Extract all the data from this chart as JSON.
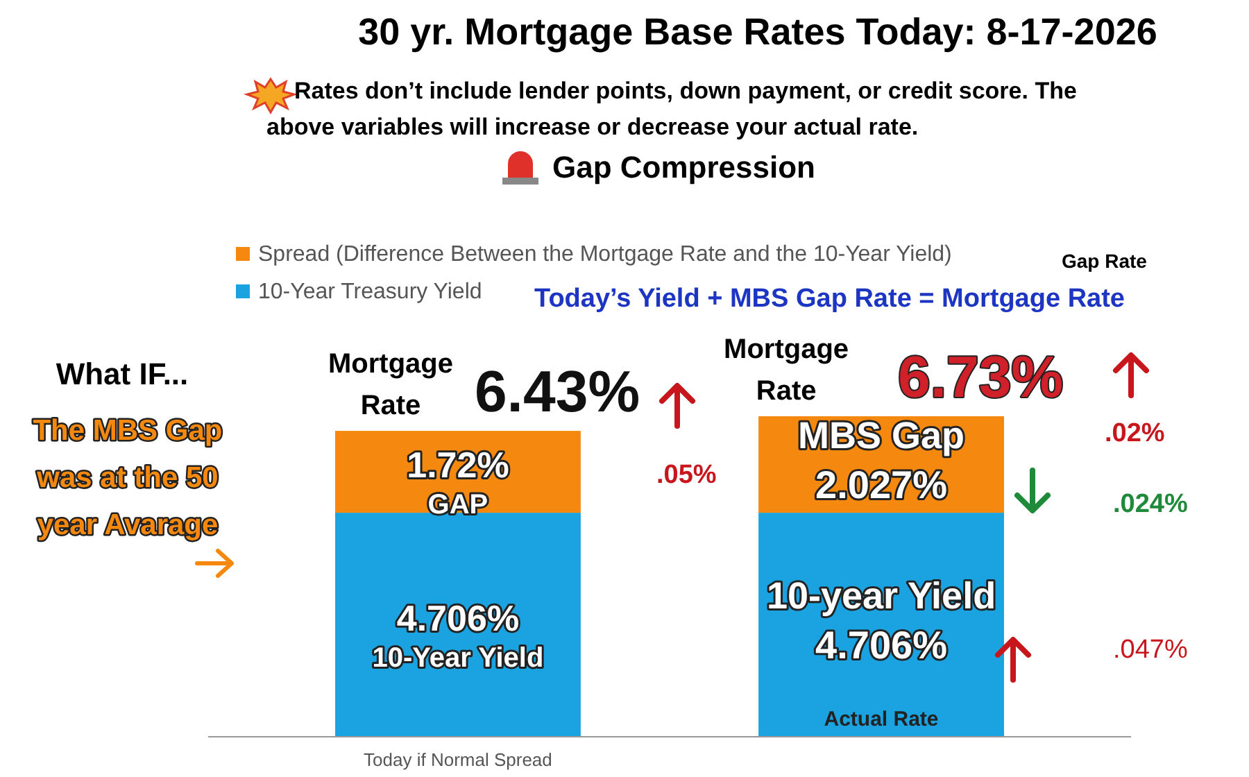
{
  "chart_data": {
    "type": "bar",
    "stacked": true,
    "title": "30 yr. Mortgage Base Rates Today: 8-17-2026",
    "subtitle": "Rates don’t include lender points, down payment, or credit score. The above variables will increase or decrease your actual rate.",
    "categories": [
      "Today if Normal Spread",
      null
    ],
    "series": [
      {
        "name": "10-Year Treasury Yield",
        "color": "#1aa3e0",
        "values": [
          4.706,
          4.706
        ],
        "value_labels": [
          "4.706%",
          "4.706%"
        ]
      },
      {
        "name": "Spread (Difference Between the Mortgage Rate and the 10-Year Yield)",
        "color": "#f5890f",
        "values": [
          1.72,
          2.027
        ],
        "value_labels": [
          "1.72%",
          "2.027%"
        ]
      }
    ],
    "totals": [
      "6.43%",
      "6.73%"
    ],
    "legend": "top left",
    "annotations": [
      "Gap Compression",
      "Gap Rate",
      "Today’s  Yield +  MBS Gap Rate = Mortgage Rate",
      "What IF...",
      "The MBS Gap was at the 50 year Avarage",
      "Mortgage Rate",
      "Mortgage Rate",
      ".05%",
      ".02%",
      ".024%",
      ".047%",
      "GAP",
      "10-Year Yield",
      "MBS Gap",
      "10-year Yield",
      "Actual Rate"
    ]
  }
}
